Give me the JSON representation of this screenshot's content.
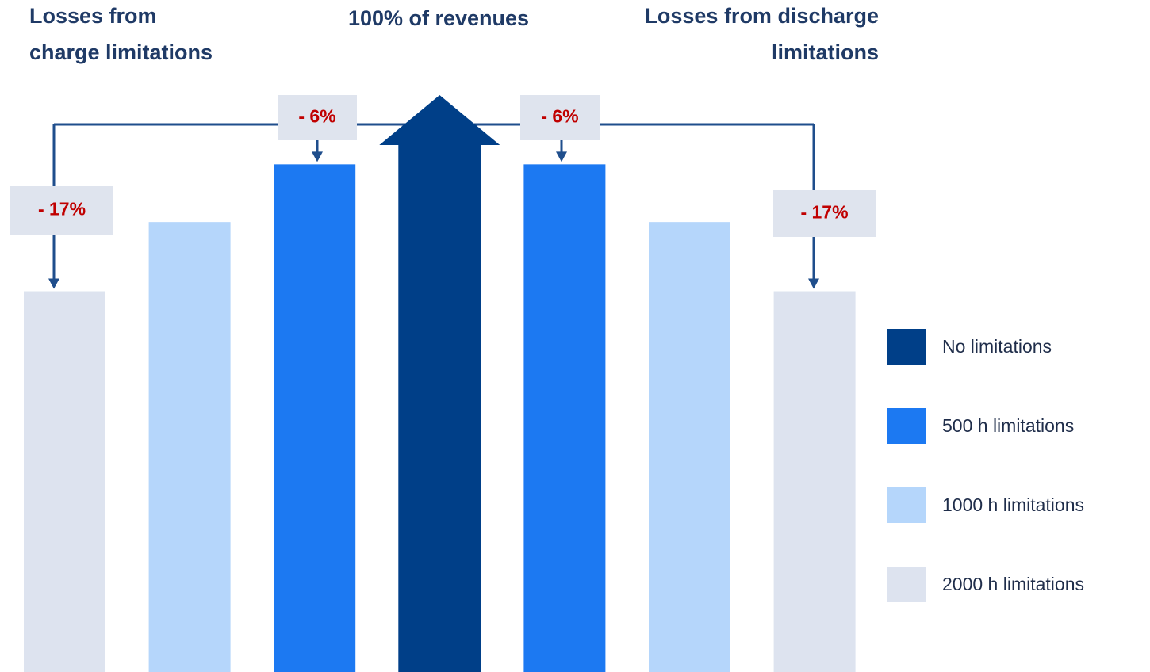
{
  "chart_data": {
    "type": "bar",
    "left_title": [
      "Losses from",
      "charge limitations"
    ],
    "center_title": "100% of revenues",
    "right_title": [
      "Losses from discharge",
      "limitations"
    ],
    "categories": [
      null,
      null,
      null,
      null,
      null,
      null,
      null
    ],
    "series": [
      {
        "name": "No limitations",
        "color": "#003f88",
        "values": [
          null,
          null,
          null,
          100,
          null,
          null,
          null
        ]
      },
      {
        "name": "500 h limitations",
        "color": "#1c79f2",
        "values": [
          null,
          null,
          94,
          null,
          94,
          null,
          null
        ]
      },
      {
        "name": "1000 h limitations",
        "color": "#b5d6fb",
        "values": [
          null,
          89,
          null,
          null,
          null,
          89,
          null
        ]
      },
      {
        "name": "2000 h limitations",
        "color": "#dde3ef",
        "values": [
          83,
          null,
          null,
          null,
          null,
          null,
          83
        ]
      }
    ],
    "changes": {
      "values": [
        -17,
        -6,
        -6,
        -17
      ],
      "value_labels": [
        "- 17%",
        "- 6%",
        "- 6%",
        "- 17%"
      ]
    },
    "ylim": [
      50,
      100
    ],
    "legend": "right"
  }
}
